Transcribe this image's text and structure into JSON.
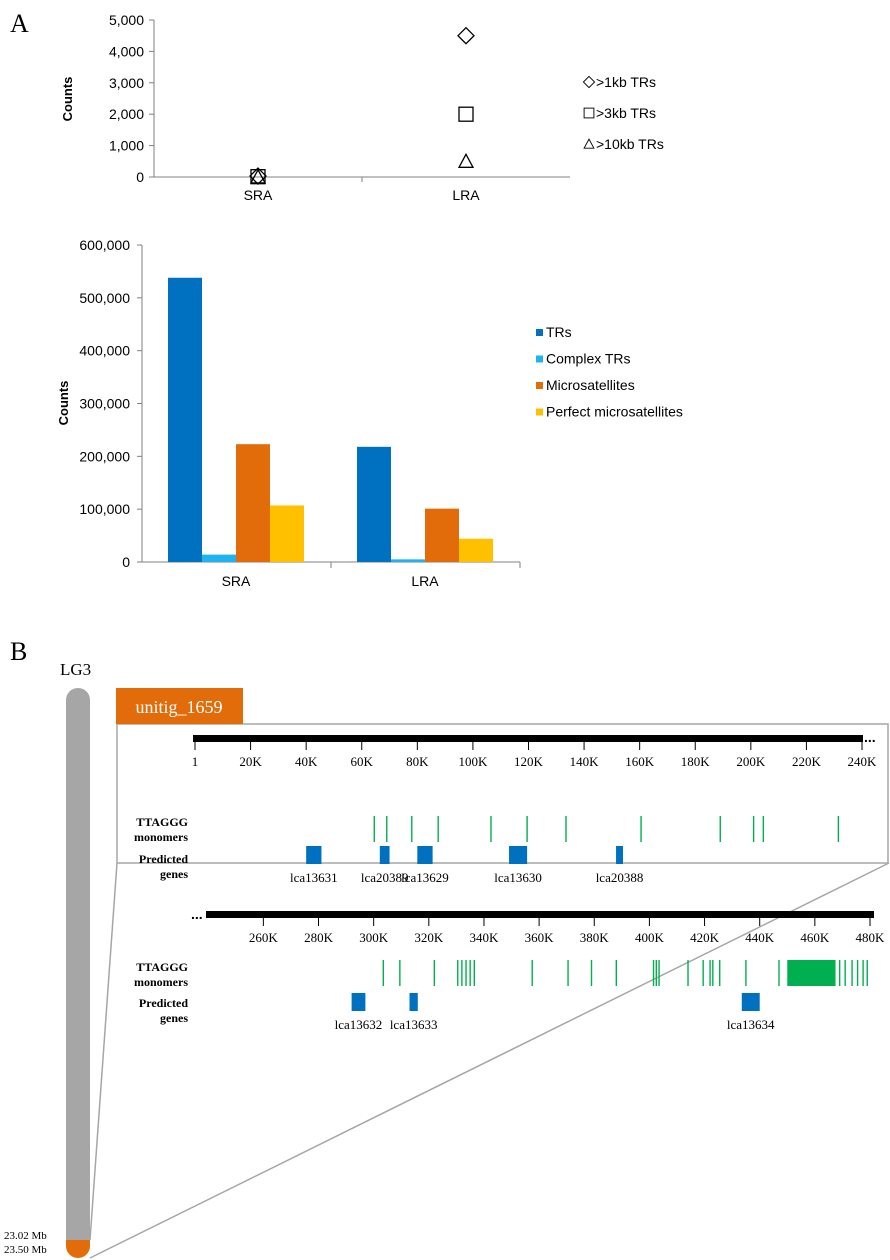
{
  "panel_a": {
    "label": "A",
    "scatter": {
      "type": "scatter",
      "ylabel": "Counts",
      "categories": [
        "SRA",
        "LRA"
      ],
      "yticks": [
        "0",
        "1,000",
        "2,000",
        "3,000",
        "4,000",
        "5,000"
      ],
      "ylim": [
        0,
        5000
      ],
      "series": [
        {
          "name": ">1kb TRs",
          "marker": "diamond",
          "values": [
            30,
            4500
          ]
        },
        {
          "name": ">3kb TRs",
          "marker": "square",
          "values": [
            10,
            2000
          ]
        },
        {
          "name": ">10kb TRs",
          "marker": "triangle",
          "values": [
            5,
            500
          ]
        }
      ],
      "legend_position": "right"
    },
    "bars": {
      "type": "bar",
      "ylabel": "Counts",
      "categories": [
        "SRA",
        "LRA"
      ],
      "yticks": [
        "0",
        "100,000",
        "200,000",
        "300,000",
        "400,000",
        "500,000",
        "600,000"
      ],
      "ylim": [
        0,
        600000
      ],
      "series": [
        {
          "name": "TRs",
          "color": "#0070C0",
          "values": [
            538000,
            218000
          ]
        },
        {
          "name": "Complex TRs",
          "color": "#1FB4EF",
          "values": [
            14000,
            5000
          ]
        },
        {
          "name": "Microsatellites",
          "color": "#E36C0A",
          "values": [
            223000,
            101000
          ]
        },
        {
          "name": "Perfect microsatellites",
          "color": "#FFC000",
          "values": [
            107000,
            44000
          ]
        }
      ],
      "legend_position": "right"
    }
  },
  "panel_b": {
    "label": "B",
    "chromosome": "LG3",
    "region_top": "23.02 Mb",
    "region_bottom": "23.50 Mb",
    "contig": "unitig_1659",
    "ellipsis": "...",
    "track_monomers": [
      "TTAGGG",
      "monomers"
    ],
    "track_genes": [
      "Predicted",
      "genes"
    ],
    "monomer_color": "#00B050",
    "gene_color": "#0070C0",
    "contig_color": "#E36C0A",
    "track1": {
      "range": [
        1,
        240000
      ],
      "ticks": [
        {
          "v": 1,
          "label": "1"
        },
        {
          "v": 20000,
          "label": "20K"
        },
        {
          "v": 40000,
          "label": "40K"
        },
        {
          "v": 60000,
          "label": "60K"
        },
        {
          "v": 80000,
          "label": "80K"
        },
        {
          "v": 100000,
          "label": "100K"
        },
        {
          "v": 120000,
          "label": "120K"
        },
        {
          "v": 140000,
          "label": "140K"
        },
        {
          "v": 160000,
          "label": "160K"
        },
        {
          "v": 180000,
          "label": "180K"
        },
        {
          "v": 200000,
          "label": "200K"
        },
        {
          "v": 220000,
          "label": "220K"
        },
        {
          "v": 240000,
          "label": "240K"
        }
      ],
      "monomers": [
        64500,
        69000,
        78000,
        87500,
        106500,
        119500,
        133500,
        160500,
        189000,
        201000,
        204500,
        231500
      ],
      "genes": [
        {
          "name": "lca13631",
          "start": 40000,
          "end": 45500
        },
        {
          "name": "lca20389",
          "start": 66500,
          "end": 70000
        },
        {
          "name": "lca13629",
          "start": 80000,
          "end": 85500
        },
        {
          "name": "lca13630",
          "start": 113000,
          "end": 119500
        },
        {
          "name": "lca20388",
          "start": 151500,
          "end": 154000
        }
      ]
    },
    "track2": {
      "range": [
        245000,
        480000
      ],
      "ticks": [
        {
          "v": 260000,
          "label": "260K"
        },
        {
          "v": 280000,
          "label": "280K"
        },
        {
          "v": 300000,
          "label": "300K"
        },
        {
          "v": 320000,
          "label": "320K"
        },
        {
          "v": 340000,
          "label": "340K"
        },
        {
          "v": 360000,
          "label": "360K"
        },
        {
          "v": 380000,
          "label": "380K"
        },
        {
          "v": 400000,
          "label": "400K"
        },
        {
          "v": 420000,
          "label": "420K"
        },
        {
          "v": 440000,
          "label": "440K"
        },
        {
          "v": 460000,
          "label": "460K"
        },
        {
          "v": 480000,
          "label": "480K"
        }
      ],
      "monomers": [
        303500,
        309500,
        322000,
        330500,
        332000,
        333500,
        335000,
        336500,
        357500,
        370500,
        379000,
        388000,
        401500,
        402500,
        403500,
        414000,
        419500,
        422000,
        423000,
        425500,
        435000,
        447000
      ],
      "monomer_block": {
        "start": 450000,
        "end": 467500
      },
      "monomers_after_block": [
        469000,
        471000,
        473500,
        475500,
        477500,
        479000
      ],
      "genes": [
        {
          "name": "lca13632",
          "start": 292000,
          "end": 297000
        },
        {
          "name": "lca13633",
          "start": 313000,
          "end": 316000
        },
        {
          "name": "lca13634",
          "start": 433500,
          "end": 440000
        }
      ]
    }
  }
}
